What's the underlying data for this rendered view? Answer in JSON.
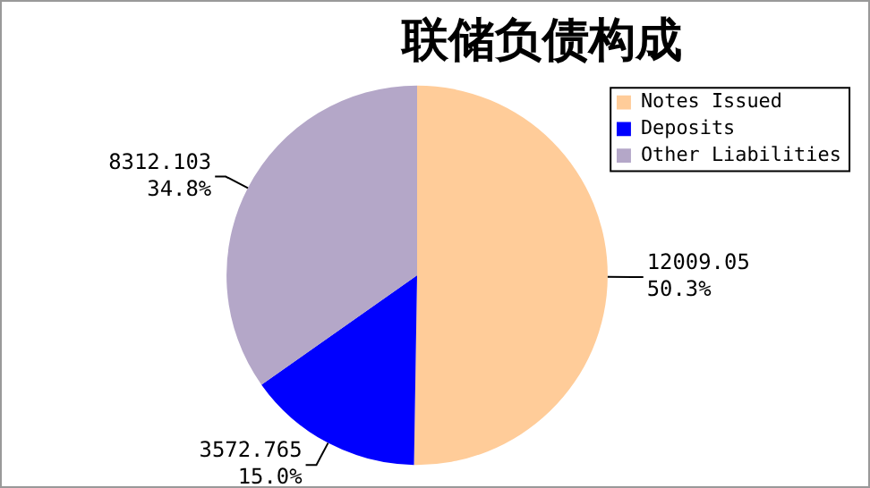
{
  "chart_data": {
    "type": "pie",
    "title": "联储负债构成",
    "categories": [
      "Notes Issued",
      "Deposits",
      "Other Liabilities"
    ],
    "values": [
      12009.05,
      3572.765,
      8312.103
    ],
    "colors": [
      "#ffcc99",
      "#0000ff",
      "#b4a7c8"
    ],
    "value_labels": [
      "12009.05\n50.3%",
      "3572.765\n15.0%",
      "8312.103\n34.8%"
    ],
    "legend": "top right"
  }
}
